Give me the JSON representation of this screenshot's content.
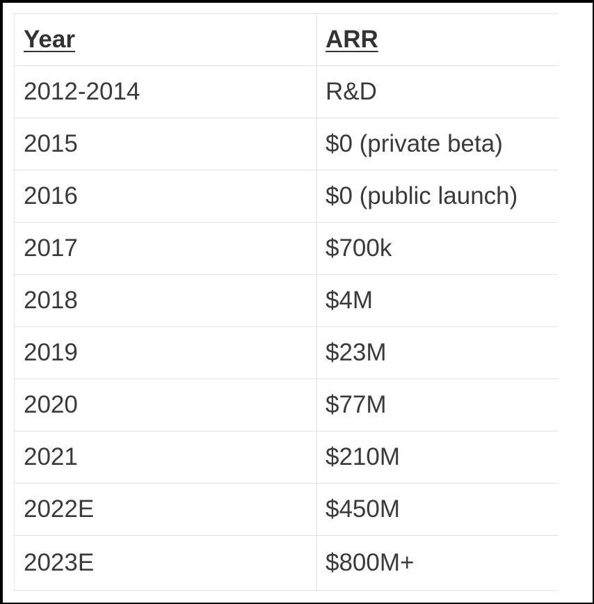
{
  "table": {
    "headers": [
      "Year",
      "ARR"
    ],
    "rows": [
      [
        "2012-2014",
        "R&D"
      ],
      [
        "2015",
        "$0 (private beta)"
      ],
      [
        "2016",
        "$0 (public launch)"
      ],
      [
        "2017",
        "$700k"
      ],
      [
        "2018",
        "$4M"
      ],
      [
        "2019",
        "$23M"
      ],
      [
        "2020",
        "$77M"
      ],
      [
        "2021",
        "$210M"
      ],
      [
        "2022E",
        "$450M"
      ],
      [
        "2023E",
        "$800M+"
      ]
    ]
  }
}
